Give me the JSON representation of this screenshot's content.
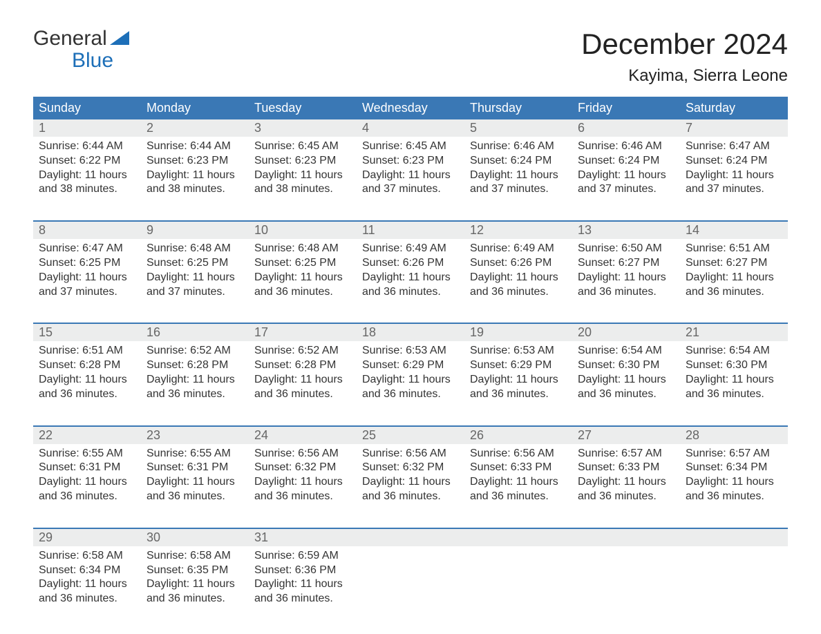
{
  "logo": {
    "line1": "General",
    "line2": "Blue",
    "accent_color": "#1d6fb8"
  },
  "title": "December 2024",
  "location": "Kayima, Sierra Leone",
  "colors": {
    "header_bg": "#3a78b5",
    "header_text": "#ffffff",
    "daynum_bg": "#eceded",
    "daynum_text": "#666666",
    "body_text": "#333333",
    "week_border": "#3a78b5",
    "page_bg": "#ffffff"
  },
  "day_names": [
    "Sunday",
    "Monday",
    "Tuesday",
    "Wednesday",
    "Thursday",
    "Friday",
    "Saturday"
  ],
  "weeks": [
    [
      {
        "n": "1",
        "sunrise": "6:44 AM",
        "sunset": "6:22 PM",
        "daylight": "11 hours and 38 minutes."
      },
      {
        "n": "2",
        "sunrise": "6:44 AM",
        "sunset": "6:23 PM",
        "daylight": "11 hours and 38 minutes."
      },
      {
        "n": "3",
        "sunrise": "6:45 AM",
        "sunset": "6:23 PM",
        "daylight": "11 hours and 38 minutes."
      },
      {
        "n": "4",
        "sunrise": "6:45 AM",
        "sunset": "6:23 PM",
        "daylight": "11 hours and 37 minutes."
      },
      {
        "n": "5",
        "sunrise": "6:46 AM",
        "sunset": "6:24 PM",
        "daylight": "11 hours and 37 minutes."
      },
      {
        "n": "6",
        "sunrise": "6:46 AM",
        "sunset": "6:24 PM",
        "daylight": "11 hours and 37 minutes."
      },
      {
        "n": "7",
        "sunrise": "6:47 AM",
        "sunset": "6:24 PM",
        "daylight": "11 hours and 37 minutes."
      }
    ],
    [
      {
        "n": "8",
        "sunrise": "6:47 AM",
        "sunset": "6:25 PM",
        "daylight": "11 hours and 37 minutes."
      },
      {
        "n": "9",
        "sunrise": "6:48 AM",
        "sunset": "6:25 PM",
        "daylight": "11 hours and 37 minutes."
      },
      {
        "n": "10",
        "sunrise": "6:48 AM",
        "sunset": "6:25 PM",
        "daylight": "11 hours and 36 minutes."
      },
      {
        "n": "11",
        "sunrise": "6:49 AM",
        "sunset": "6:26 PM",
        "daylight": "11 hours and 36 minutes."
      },
      {
        "n": "12",
        "sunrise": "6:49 AM",
        "sunset": "6:26 PM",
        "daylight": "11 hours and 36 minutes."
      },
      {
        "n": "13",
        "sunrise": "6:50 AM",
        "sunset": "6:27 PM",
        "daylight": "11 hours and 36 minutes."
      },
      {
        "n": "14",
        "sunrise": "6:51 AM",
        "sunset": "6:27 PM",
        "daylight": "11 hours and 36 minutes."
      }
    ],
    [
      {
        "n": "15",
        "sunrise": "6:51 AM",
        "sunset": "6:28 PM",
        "daylight": "11 hours and 36 minutes."
      },
      {
        "n": "16",
        "sunrise": "6:52 AM",
        "sunset": "6:28 PM",
        "daylight": "11 hours and 36 minutes."
      },
      {
        "n": "17",
        "sunrise": "6:52 AM",
        "sunset": "6:28 PM",
        "daylight": "11 hours and 36 minutes."
      },
      {
        "n": "18",
        "sunrise": "6:53 AM",
        "sunset": "6:29 PM",
        "daylight": "11 hours and 36 minutes."
      },
      {
        "n": "19",
        "sunrise": "6:53 AM",
        "sunset": "6:29 PM",
        "daylight": "11 hours and 36 minutes."
      },
      {
        "n": "20",
        "sunrise": "6:54 AM",
        "sunset": "6:30 PM",
        "daylight": "11 hours and 36 minutes."
      },
      {
        "n": "21",
        "sunrise": "6:54 AM",
        "sunset": "6:30 PM",
        "daylight": "11 hours and 36 minutes."
      }
    ],
    [
      {
        "n": "22",
        "sunrise": "6:55 AM",
        "sunset": "6:31 PM",
        "daylight": "11 hours and 36 minutes."
      },
      {
        "n": "23",
        "sunrise": "6:55 AM",
        "sunset": "6:31 PM",
        "daylight": "11 hours and 36 minutes."
      },
      {
        "n": "24",
        "sunrise": "6:56 AM",
        "sunset": "6:32 PM",
        "daylight": "11 hours and 36 minutes."
      },
      {
        "n": "25",
        "sunrise": "6:56 AM",
        "sunset": "6:32 PM",
        "daylight": "11 hours and 36 minutes."
      },
      {
        "n": "26",
        "sunrise": "6:56 AM",
        "sunset": "6:33 PM",
        "daylight": "11 hours and 36 minutes."
      },
      {
        "n": "27",
        "sunrise": "6:57 AM",
        "sunset": "6:33 PM",
        "daylight": "11 hours and 36 minutes."
      },
      {
        "n": "28",
        "sunrise": "6:57 AM",
        "sunset": "6:34 PM",
        "daylight": "11 hours and 36 minutes."
      }
    ],
    [
      {
        "n": "29",
        "sunrise": "6:58 AM",
        "sunset": "6:34 PM",
        "daylight": "11 hours and 36 minutes."
      },
      {
        "n": "30",
        "sunrise": "6:58 AM",
        "sunset": "6:35 PM",
        "daylight": "11 hours and 36 minutes."
      },
      {
        "n": "31",
        "sunrise": "6:59 AM",
        "sunset": "6:36 PM",
        "daylight": "11 hours and 36 minutes."
      },
      null,
      null,
      null,
      null
    ]
  ],
  "labels": {
    "sunrise": "Sunrise: ",
    "sunset": "Sunset: ",
    "daylight": "Daylight: "
  }
}
